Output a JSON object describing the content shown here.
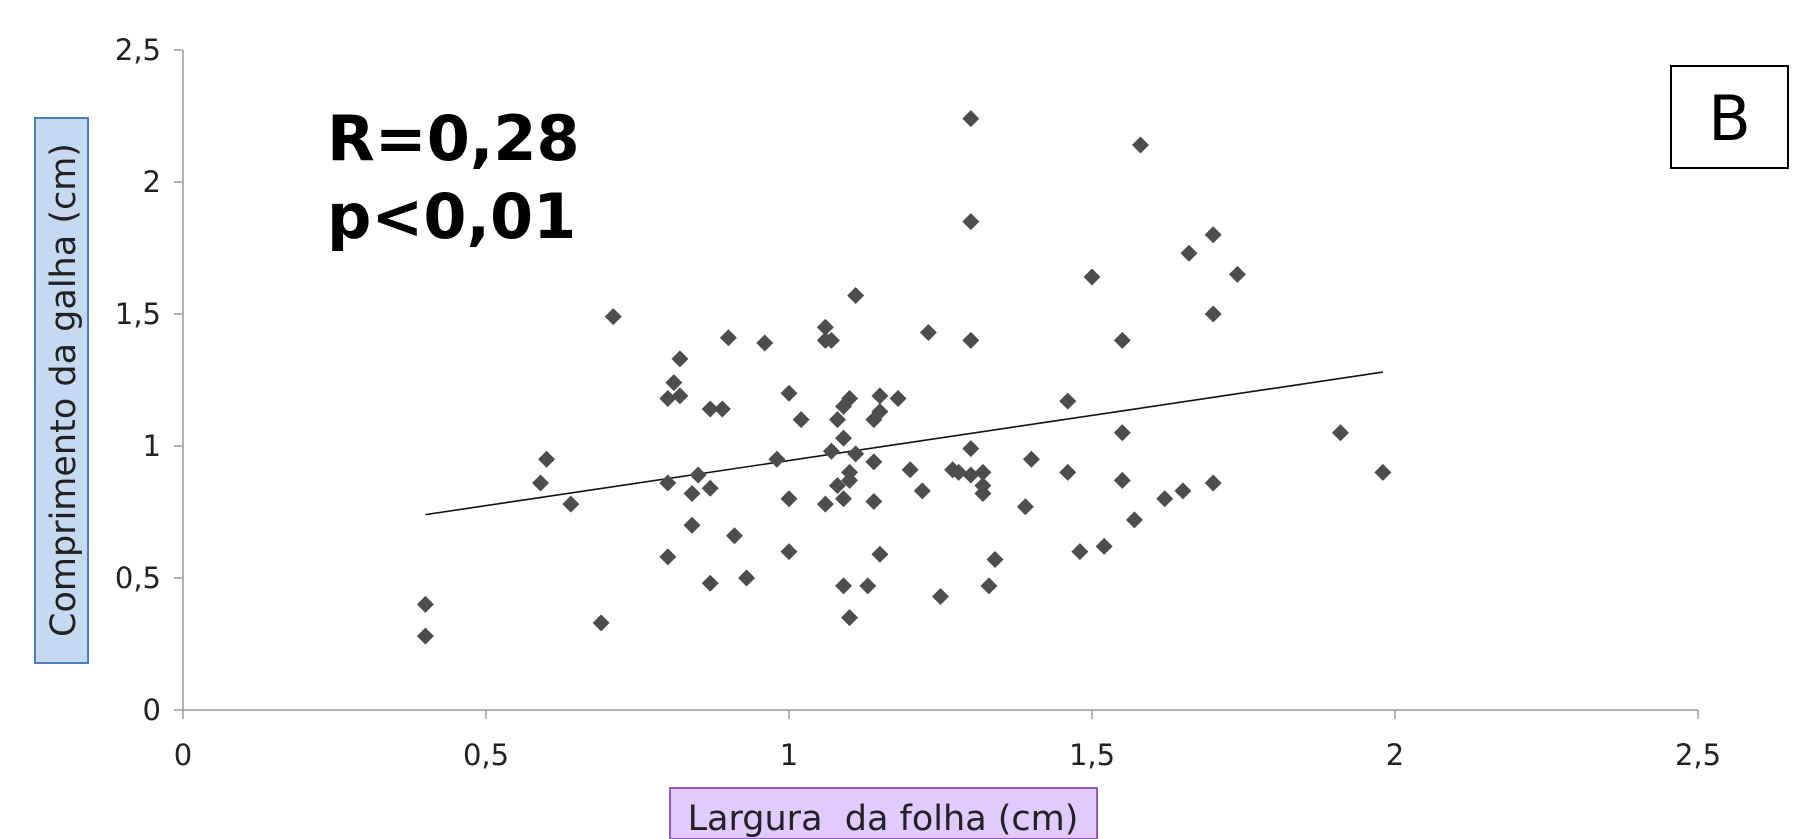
{
  "chart_data": {
    "type": "scatter",
    "title": "",
    "panel_label": "B",
    "xlabel": "Largura  da folha (cm)",
    "ylabel": "Comprimento da galha (cm)",
    "xlim": [
      0,
      2.5
    ],
    "ylim": [
      0,
      2.5
    ],
    "x_ticks": [
      "0",
      "0,5",
      "1",
      "1,5",
      "2",
      "2,5"
    ],
    "y_ticks": [
      "0",
      "0,5",
      "1",
      "1,5",
      "2",
      "2,5"
    ],
    "grid": false,
    "legend": "none",
    "annotations": [
      "R=0,28",
      "p<0,01"
    ],
    "trendline": {
      "x": [
        0.4,
        1.98
      ],
      "y": [
        0.74,
        1.28
      ]
    },
    "marker_color": "#4d4d4d",
    "xlabel_box_color": "#e2c9ff",
    "ylabel_box_color": "#c5d9f1",
    "points": [
      [
        0.4,
        0.4
      ],
      [
        0.4,
        0.28
      ],
      [
        0.59,
        0.86
      ],
      [
        0.6,
        0.95
      ],
      [
        0.64,
        0.78
      ],
      [
        0.69,
        0.33
      ],
      [
        0.71,
        1.49
      ],
      [
        0.8,
        1.18
      ],
      [
        0.8,
        0.86
      ],
      [
        0.8,
        0.58
      ],
      [
        0.81,
        1.24
      ],
      [
        0.82,
        1.33
      ],
      [
        0.82,
        1.19
      ],
      [
        0.84,
        0.82
      ],
      [
        0.84,
        0.7
      ],
      [
        0.85,
        0.89
      ],
      [
        0.87,
        1.14
      ],
      [
        0.87,
        0.84
      ],
      [
        0.87,
        0.48
      ],
      [
        0.89,
        1.14
      ],
      [
        0.9,
        1.41
      ],
      [
        0.91,
        0.66
      ],
      [
        0.93,
        0.5
      ],
      [
        0.96,
        1.39
      ],
      [
        0.98,
        0.95
      ],
      [
        1.0,
        1.2
      ],
      [
        1.0,
        0.8
      ],
      [
        1.0,
        0.6
      ],
      [
        1.02,
        1.1
      ],
      [
        1.06,
        1.45
      ],
      [
        1.06,
        1.4
      ],
      [
        1.06,
        0.78
      ],
      [
        1.07,
        1.4
      ],
      [
        1.07,
        0.98
      ],
      [
        1.08,
        1.1
      ],
      [
        1.08,
        0.85
      ],
      [
        1.09,
        1.15
      ],
      [
        1.09,
        1.03
      ],
      [
        1.09,
        0.8
      ],
      [
        1.09,
        0.47
      ],
      [
        1.1,
        1.18
      ],
      [
        1.1,
        0.9
      ],
      [
        1.1,
        0.87
      ],
      [
        1.1,
        0.35
      ],
      [
        1.11,
        1.57
      ],
      [
        1.11,
        0.97
      ],
      [
        1.13,
        0.47
      ],
      [
        1.14,
        1.1
      ],
      [
        1.14,
        0.94
      ],
      [
        1.14,
        0.79
      ],
      [
        1.15,
        1.19
      ],
      [
        1.15,
        1.13
      ],
      [
        1.15,
        0.59
      ],
      [
        1.18,
        1.18
      ],
      [
        1.2,
        0.91
      ],
      [
        1.22,
        0.83
      ],
      [
        1.23,
        1.43
      ],
      [
        1.25,
        0.43
      ],
      [
        1.27,
        0.91
      ],
      [
        1.28,
        0.9
      ],
      [
        1.3,
        2.24
      ],
      [
        1.3,
        1.85
      ],
      [
        1.3,
        1.4
      ],
      [
        1.3,
        0.99
      ],
      [
        1.3,
        0.89
      ],
      [
        1.32,
        0.9
      ],
      [
        1.32,
        0.85
      ],
      [
        1.32,
        0.82
      ],
      [
        1.33,
        0.47
      ],
      [
        1.34,
        0.57
      ],
      [
        1.39,
        0.77
      ],
      [
        1.4,
        0.95
      ],
      [
        1.46,
        1.17
      ],
      [
        1.46,
        0.9
      ],
      [
        1.48,
        0.6
      ],
      [
        1.5,
        1.64
      ],
      [
        1.52,
        0.62
      ],
      [
        1.55,
        1.4
      ],
      [
        1.55,
        1.05
      ],
      [
        1.55,
        0.87
      ],
      [
        1.57,
        0.72
      ],
      [
        1.58,
        2.14
      ],
      [
        1.62,
        0.8
      ],
      [
        1.65,
        0.83
      ],
      [
        1.66,
        1.73
      ],
      [
        1.7,
        1.8
      ],
      [
        1.7,
        1.5
      ],
      [
        1.7,
        0.86
      ],
      [
        1.74,
        1.65
      ],
      [
        1.91,
        1.05
      ],
      [
        1.98,
        0.9
      ]
    ]
  }
}
